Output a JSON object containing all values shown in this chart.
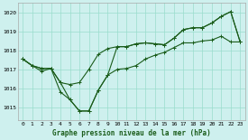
{
  "title": "Graphe pression niveau de la mer (hPa)",
  "bg_color": "#cef0ee",
  "grid_color": "#99ddcc",
  "line_color": "#1a5c1a",
  "x_ticks": [
    0,
    1,
    2,
    3,
    4,
    5,
    6,
    7,
    8,
    9,
    10,
    11,
    12,
    13,
    14,
    15,
    16,
    17,
    18,
    19,
    20,
    21,
    22,
    23
  ],
  "y_ticks": [
    1015,
    1016,
    1017,
    1018,
    1019,
    1020
  ],
  "ylim": [
    1014.3,
    1020.5
  ],
  "xlim": [
    -0.5,
    23.5
  ],
  "curve_main": [
    1017.55,
    1017.2,
    1016.9,
    1017.05,
    1015.8,
    1015.4,
    1014.8,
    1014.8,
    1015.9,
    1016.7,
    1018.2,
    1018.2,
    1018.35,
    1018.4,
    1018.35,
    1018.3,
    1018.65,
    1019.1,
    1019.2,
    1019.2,
    1019.45,
    1019.8,
    1020.05,
    1018.45
  ],
  "curve_upper": [
    1017.55,
    1017.2,
    1017.05,
    1017.05,
    1016.3,
    1016.2,
    1016.3,
    1017.0,
    1017.8,
    1018.1,
    1018.2,
    1018.2,
    1018.35,
    1018.4,
    1018.35,
    1018.3,
    1018.65,
    1019.1,
    1019.2,
    1019.2,
    1019.45,
    1019.8,
    1020.05,
    1018.45
  ],
  "curve_lower": [
    1017.55,
    1017.2,
    1017.05,
    1017.05,
    1016.3,
    1015.4,
    1014.8,
    1014.8,
    1015.9,
    1016.7,
    1017.0,
    1017.05,
    1017.2,
    1017.55,
    1017.75,
    1017.9,
    1018.15,
    1018.4,
    1018.4,
    1018.5,
    1018.55,
    1018.75,
    1018.45,
    1018.45
  ],
  "title_fontsize": 5.5,
  "tick_fontsize": 4.5
}
